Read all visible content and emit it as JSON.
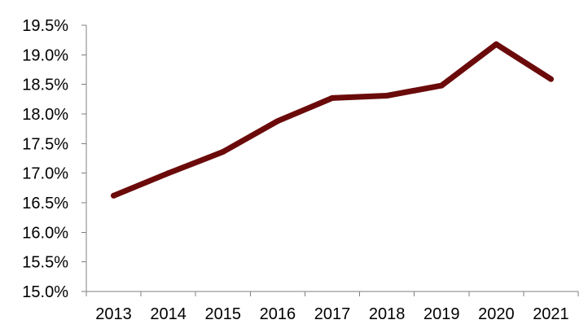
{
  "chart_data": {
    "type": "line",
    "title": "",
    "xlabel": "",
    "ylabel": "",
    "categories": [
      "2013",
      "2014",
      "2015",
      "2016",
      "2017",
      "2018",
      "2019",
      "2020",
      "2021"
    ],
    "series": [
      {
        "values": [
          16.62,
          17.0,
          17.36,
          17.88,
          18.27,
          18.31,
          18.48,
          19.18,
          18.59
        ]
      }
    ],
    "ylim": [
      15.0,
      19.5
    ],
    "y_ticks": [
      "15.0%",
      "15.5%",
      "16.0%",
      "16.5%",
      "17.0%",
      "17.5%",
      "18.0%",
      "18.5%",
      "19.0%",
      "19.5%"
    ],
    "y_tick_values": [
      15.0,
      15.5,
      16.0,
      16.5,
      17.0,
      17.5,
      18.0,
      18.5,
      19.0,
      19.5
    ],
    "grid": false,
    "legend": "none",
    "line_color": "#6b0a0a",
    "axis_color": "#7f7f7f"
  }
}
